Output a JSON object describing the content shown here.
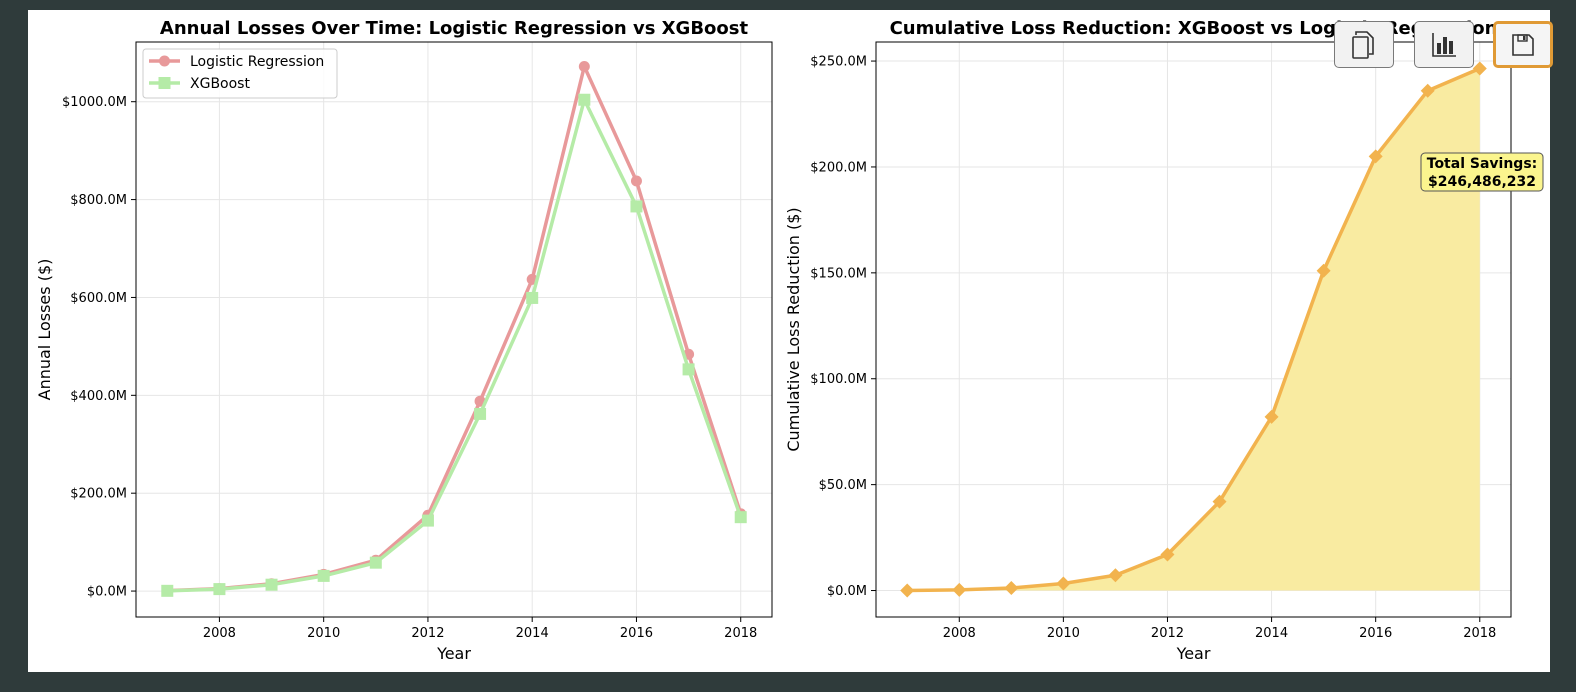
{
  "colors": {
    "logistic": "#e8999a",
    "xgboost": "#b5eba7",
    "cumulative_line": "#f2b34e",
    "cumulative_fill": "#f9eba1",
    "annotation_bg": "#fbf58e"
  },
  "toolbar": {
    "buttons": [
      {
        "name": "copy-button",
        "icon": "copy-icon"
      },
      {
        "name": "chart-button",
        "icon": "bar-chart-icon"
      },
      {
        "name": "save-button",
        "icon": "save-icon",
        "active": true
      }
    ]
  },
  "chart_data": [
    {
      "type": "line",
      "title": "Annual Losses Over Time: Logistic Regression vs XGBoost",
      "xlabel": "Year",
      "ylabel": "Annual Losses ($)",
      "x": [
        2007,
        2008,
        2009,
        2010,
        2011,
        2012,
        2013,
        2014,
        2015,
        2016,
        2017,
        2018
      ],
      "xticks": [
        2008,
        2010,
        2012,
        2014,
        2016,
        2018
      ],
      "xlim": [
        2006.4,
        2018.6
      ],
      "ylim": [
        -53,
        1122
      ],
      "yticks": [
        0,
        200,
        400,
        600,
        800,
        1000
      ],
      "ytick_labels": [
        "$0.0M",
        "$200.0M",
        "$400.0M",
        "$600.0M",
        "$800.0M",
        "$1000.0M"
      ],
      "grid": true,
      "legend_position": "top-left",
      "series": [
        {
          "name": "Logistic Regression",
          "marker": "circle",
          "values": [
            1,
            5,
            15,
            34,
            63,
            155,
            388,
            637,
            1072,
            838,
            484,
            158
          ]
        },
        {
          "name": "XGBoost",
          "marker": "square",
          "values": [
            0.5,
            4,
            13,
            31,
            58,
            144,
            362,
            599,
            1004,
            786,
            453,
            151
          ]
        }
      ]
    },
    {
      "type": "area",
      "title": "Cumulative Loss Reduction: XGBoost vs Logistic Regression",
      "xlabel": "Year",
      "ylabel": "Cumulative Loss Reduction ($)",
      "x": [
        2007,
        2008,
        2009,
        2010,
        2011,
        2012,
        2013,
        2014,
        2015,
        2016,
        2017,
        2018
      ],
      "xticks": [
        2008,
        2010,
        2012,
        2014,
        2016,
        2018
      ],
      "xlim": [
        2006.4,
        2018.6
      ],
      "ylim": [
        -12.5,
        259
      ],
      "yticks": [
        0,
        50,
        100,
        150,
        200,
        250
      ],
      "ytick_labels": [
        "$0.0M",
        "$50.0M",
        "$100.0M",
        "$150.0M",
        "$200.0M",
        "$250.0M"
      ],
      "grid": true,
      "series": [
        {
          "marker": "diamond",
          "values": [
            0,
            0.3,
            1.2,
            3.3,
            7.2,
            17,
            42,
            82,
            151,
            205,
            236,
            246.5
          ]
        }
      ],
      "annotation": {
        "line1": "Total Savings:",
        "line2": "$246,486,232"
      }
    }
  ]
}
